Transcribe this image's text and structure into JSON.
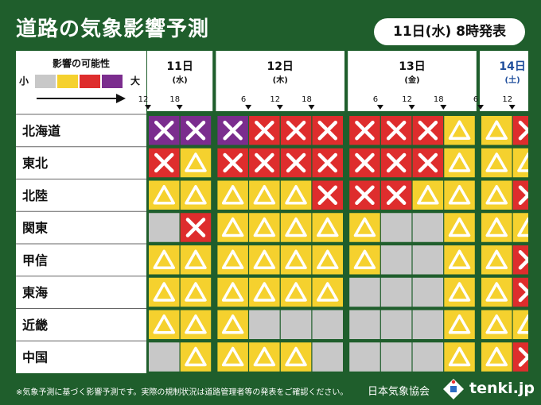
{
  "title": "道路の気象影響予測",
  "issued": "11日(水) 8時発表",
  "footer_note": "※気象予測に基づく影響予測です。実際の規制状況は道路管理者等の発表をご確認ください。",
  "footer_org": "日本気象協会",
  "brand": "tenki.jp",
  "brand_icon": "tenki-logo-icon",
  "chart_data": {
    "type": "table",
    "legend": {
      "title": "影響の可能性",
      "low": "小",
      "high": "大"
    },
    "levels": {
      "0": {
        "color": "#c8c8c8",
        "symbol": "none"
      },
      "1": {
        "color": "#f5d12e",
        "symbol": "triangle"
      },
      "2": {
        "color": "#de2d2d",
        "symbol": "x"
      },
      "3": {
        "color": "#7b2d8e",
        "symbol": "x"
      }
    },
    "days": [
      {
        "date": "11日",
        "dow": "(水)",
        "ticks": [
          "12",
          "18"
        ],
        "highlight": false
      },
      {
        "date": "12日",
        "dow": "(木)",
        "ticks": [
          "6",
          "12",
          "18"
        ],
        "highlight": false
      },
      {
        "date": "13日",
        "dow": "(金)",
        "ticks": [
          "6",
          "12",
          "18"
        ],
        "highlight": false
      },
      {
        "date": "14日",
        "dow": "(土)",
        "ticks": [
          "6",
          "12"
        ],
        "highlight": true
      }
    ],
    "day_column_counts": [
      2,
      4,
      4,
      2
    ],
    "regions": [
      {
        "name": "北海道",
        "values": [
          3,
          3,
          3,
          2,
          2,
          2,
          2,
          2,
          2,
          1,
          1,
          2
        ]
      },
      {
        "name": "東北",
        "values": [
          2,
          1,
          2,
          2,
          2,
          2,
          2,
          2,
          2,
          1,
          1,
          1
        ]
      },
      {
        "name": "北陸",
        "values": [
          1,
          1,
          1,
          1,
          1,
          2,
          2,
          2,
          1,
          1,
          1,
          2
        ]
      },
      {
        "name": "関東",
        "values": [
          0,
          2,
          1,
          1,
          1,
          1,
          1,
          0,
          0,
          1,
          1,
          1
        ]
      },
      {
        "name": "甲信",
        "values": [
          1,
          1,
          1,
          1,
          1,
          1,
          1,
          0,
          0,
          1,
          1,
          2
        ]
      },
      {
        "name": "東海",
        "values": [
          1,
          1,
          1,
          1,
          1,
          1,
          0,
          0,
          0,
          1,
          1,
          2
        ]
      },
      {
        "name": "近畿",
        "values": [
          1,
          1,
          1,
          0,
          0,
          0,
          0,
          0,
          0,
          1,
          1,
          1
        ]
      },
      {
        "name": "中国",
        "values": [
          0,
          1,
          1,
          1,
          1,
          0,
          0,
          0,
          0,
          1,
          1,
          2
        ]
      }
    ]
  }
}
